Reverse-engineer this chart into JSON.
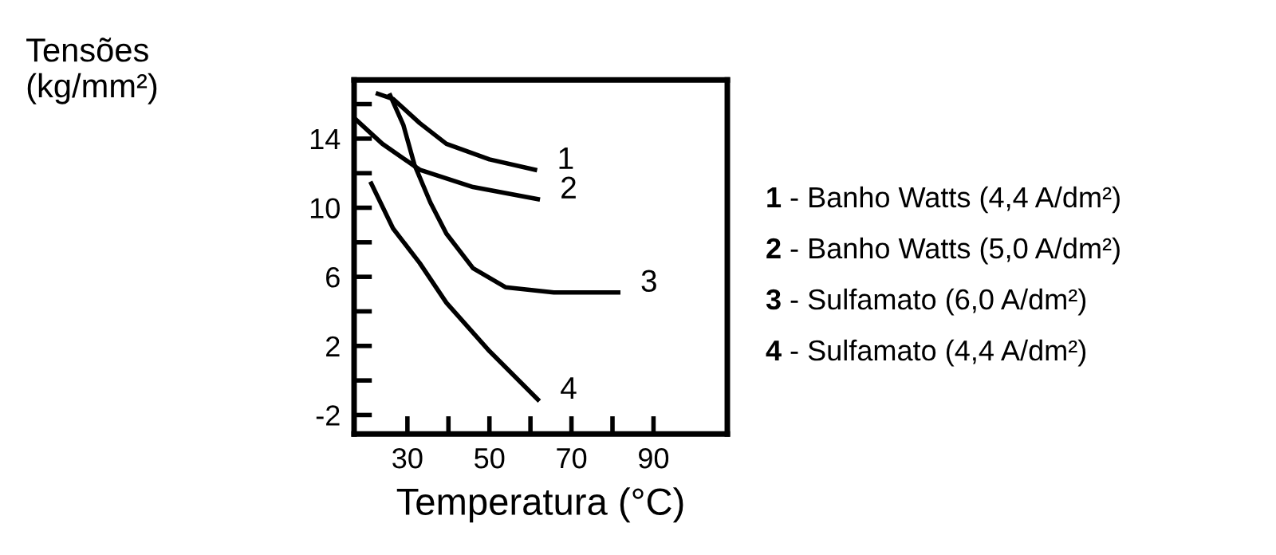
{
  "chart_data": {
    "type": "line",
    "xlabel": "Temperatura (°C)",
    "ylabel": "Tensões\n(kg/mm²)",
    "xlim": [
      17,
      108
    ],
    "ylim": [
      -3.1,
      17.4
    ],
    "xticks": [
      30,
      {
        "value": 40,
        "label": null
      },
      50,
      {
        "value": 60,
        "label": null
      },
      70,
      {
        "value": 80,
        "label": null
      },
      90
    ],
    "yticks": [
      {
        "value": 16,
        "label": null
      },
      14,
      {
        "value": 12,
        "label": null
      },
      10,
      {
        "value": 8,
        "label": null
      },
      6,
      {
        "value": 4,
        "label": null
      },
      2,
      {
        "value": 0,
        "label": null
      },
      -2
    ],
    "grid": false,
    "marker": "none",
    "line_style": "solid",
    "series": [
      {
        "name": "1",
        "color": "#000000",
        "x": [
          22.8,
          26.5,
          33,
          39.5,
          50,
          61.1
        ],
        "values": [
          16.6,
          16.3,
          14.9,
          13.7,
          12.8,
          12.2
        ]
      },
      {
        "name": "2",
        "color": "#000000",
        "x": [
          17,
          23.9,
          33,
          46,
          61.8
        ],
        "values": [
          15.2,
          13.7,
          12.2,
          11.2,
          10.5
        ]
      },
      {
        "name": "3",
        "color": "#000000",
        "x": [
          25.8,
          29,
          31.7,
          35.6,
          39.5,
          46,
          53.9,
          65.7,
          81.4
        ],
        "values": [
          16.5,
          14.8,
          12.5,
          10.3,
          8.5,
          6.5,
          5.4,
          5.1,
          5.1
        ]
      },
      {
        "name": "4",
        "color": "#000000",
        "x": [
          21.2,
          26.5,
          33,
          39.5,
          50,
          61.8
        ],
        "values": [
          11.4,
          8.8,
          6.8,
          4.5,
          1.7,
          -1.1
        ]
      }
    ],
    "annotations": [
      "1 - Banho Watts (4,4 A/dm²)",
      "2 - Banho Watts (5,0 A/dm²)",
      "3 - Sulfamato (6,0 A/dm²)",
      "4 - Sulfamato (4,4 A/dm²)"
    ]
  }
}
